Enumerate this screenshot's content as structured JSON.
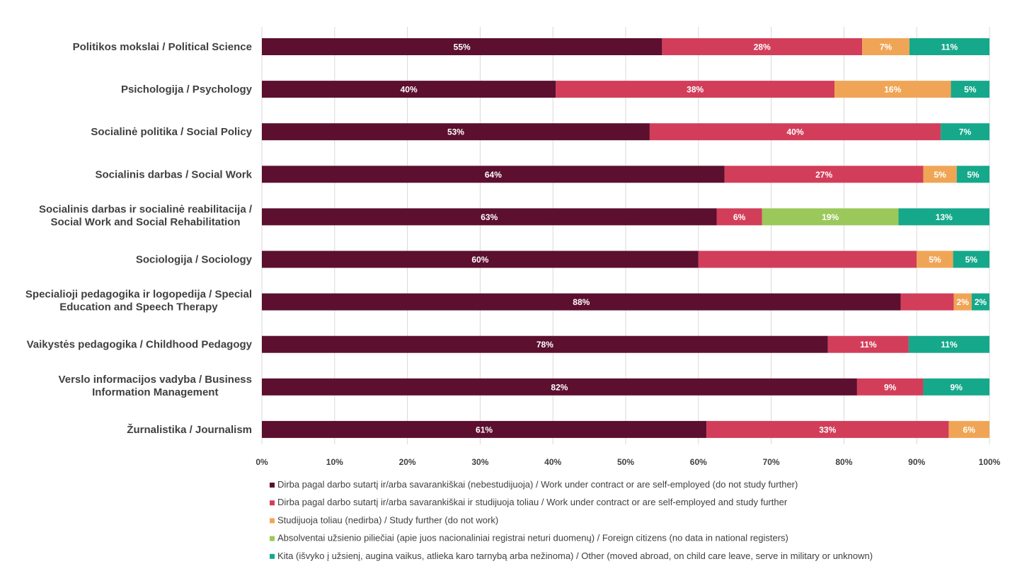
{
  "chart_data": {
    "type": "bar",
    "orientation": "horizontal",
    "stacked": true,
    "percent_stacked": true,
    "categories": [
      [
        "Politikos mokslai / Political Science"
      ],
      [
        "Psichologija / Psychology"
      ],
      [
        "Socialinė politika / Social Policy"
      ],
      [
        "Socialinis darbas / Social Work"
      ],
      [
        "Socialinis darbas ir socialinė reabilitacija /",
        "Social Work and Social Rehabilitation"
      ],
      [
        "Sociologija / Sociology"
      ],
      [
        "Specialioji pedagogika ir logopedija / Special",
        "Education and Speech Therapy"
      ],
      [
        "Vaikystės pedagogika / Childhood Pedagogy"
      ],
      [
        "Verslo informacijos vadyba / Business",
        "Information Management"
      ],
      [
        "Žurnalistika / Journalism"
      ]
    ],
    "series": [
      {
        "name": "Dirba pagal darbo sutartį ir/arba savarankiškai (nebestudijuoja) / Work under contract or are self-employed (do not study further)",
        "color": "#5c0f2e",
        "values": [
          55,
          40.4,
          53.3,
          63.6,
          62.5,
          60,
          87.8,
          77.8,
          81.8,
          61.1
        ],
        "labels": [
          "55%",
          "40%",
          "53%",
          "64%",
          "63%",
          "60%",
          "88%",
          "78%",
          "82%",
          "61%"
        ]
      },
      {
        "name": "Dirba pagal darbo sutartį ir/arba savarankiškai  ir studijuoja toliau / Work under contract or are self-employed and study further",
        "color": "#d23e5a",
        "values": [
          27.5,
          38.3,
          40,
          27.3,
          6.25,
          30,
          7.3,
          11.1,
          9.1,
          33.3
        ],
        "labels": [
          "28%",
          "38%",
          "40%",
          "27%",
          "6%",
          "",
          "",
          "11%",
          "9%",
          "33%"
        ]
      },
      {
        "name": "Studijuoja toliau (nedirba) / Study further (do not work)",
        "color": "#f0a556",
        "values": [
          6.5,
          16,
          0,
          4.6,
          0,
          5,
          2.45,
          0,
          0,
          5.6
        ],
        "labels": [
          "7%",
          "16%",
          "",
          "5%",
          "",
          "5%",
          "2%",
          "",
          "",
          "6%"
        ]
      },
      {
        "name": "Absolventai užsienio piliečiai (apie juos nacionaliniai registrai neturi duomenų) / Foreign citizens (no data in national registers)",
        "color": "#9bc85a",
        "values": [
          0,
          0,
          0,
          0,
          18.75,
          0,
          0,
          0,
          0,
          0
        ],
        "labels": [
          "",
          "",
          "",
          "",
          "19%",
          "",
          "",
          "",
          "",
          ""
        ]
      },
      {
        "name": "Kita (išvyko į užsienį, augina vaikus, atlieka karo tarnybą arba nežinoma) / Other (moved abroad, on child care leave, serve in military or unknown)",
        "color": "#16a88a",
        "values": [
          11,
          5.3,
          6.7,
          4.5,
          12.5,
          5,
          2.45,
          11.1,
          9.1,
          0
        ],
        "labels": [
          "11%",
          "5%",
          "7%",
          "5%",
          "13%",
          "5%",
          "2%",
          "11%",
          "9%",
          ""
        ]
      }
    ],
    "xlim": [
      0,
      100
    ],
    "xticks": [
      "0%",
      "10%",
      "20%",
      "30%",
      "40%",
      "50%",
      "60%",
      "70%",
      "80%",
      "90%",
      "100%"
    ],
    "grid": true,
    "legend": "bottom"
  }
}
